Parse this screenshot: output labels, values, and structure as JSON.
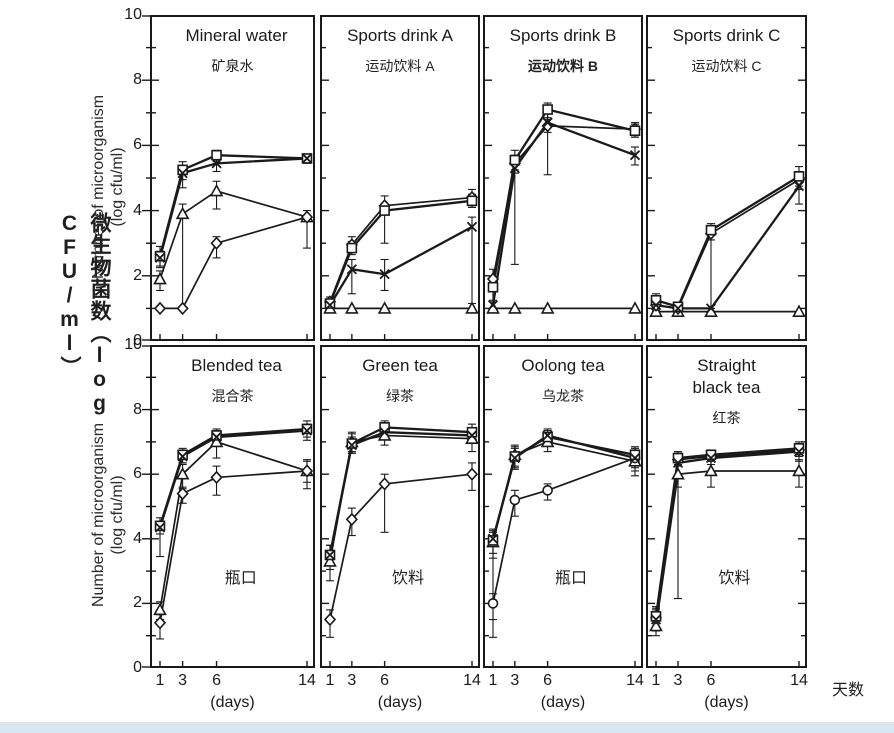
{
  "figure": {
    "ylabel_zh": "微生物菌数（log CFU/ml）",
    "ylabel_en_line1": "Number of microorganism",
    "ylabel_en_line2": "(log cfu/ml)",
    "xlabel_en": "(days)",
    "xlabel_zh": "天数",
    "y_ticks": [
      "10",
      "8",
      "6",
      "4",
      "2",
      "0"
    ],
    "x_tick_labels": [
      "1",
      "3",
      "6",
      "14"
    ],
    "ink_color": "#1a1a1a",
    "bottom_strip_color": "#dbe6f0"
  },
  "chart_data": [
    {
      "type": "line",
      "title_lines": [
        "Mineral water"
      ],
      "subtitle": "矿泉水",
      "subtitle_bold": false,
      "annotation": "",
      "x": [
        1,
        3,
        6,
        14
      ],
      "xlabel": "(days)",
      "ylim": [
        0,
        10
      ],
      "legend": "none",
      "series": [
        {
          "name": "triangle",
          "marker": "triangle",
          "values": [
            1.9,
            3.9,
            4.6,
            3.8
          ],
          "err": [
            [
              0.35,
              0.25
            ],
            [
              2.85,
              0.3
            ],
            [
              0.55,
              0.3
            ],
            [
              0.95,
              0.2
            ]
          ]
        },
        {
          "name": "diamond",
          "marker": "diamond",
          "values": [
            1.0,
            1.0,
            3.0,
            3.8
          ],
          "err": [
            [
              0,
              0
            ],
            [
              0,
              0
            ],
            [
              0.45,
              0.2
            ],
            [
              0,
              0
            ]
          ]
        },
        {
          "name": "square",
          "marker": "square",
          "values": [
            2.6,
            5.25,
            5.7,
            5.6
          ],
          "err": [
            [
              0.35,
              0.3
            ],
            [
              0.3,
              0.25
            ],
            [
              0.2,
              0.15
            ],
            [
              0.15,
              0.1
            ]
          ]
        },
        {
          "name": "cross",
          "marker": "cross",
          "values": [
            2.55,
            5.15,
            5.45,
            5.6
          ],
          "err": [
            [
              0.25,
              0.2
            ],
            [
              0.45,
              0.2
            ],
            [
              0.25,
              0.1
            ],
            [
              0.1,
              0.1
            ]
          ]
        }
      ]
    },
    {
      "type": "line",
      "title_lines": [
        "Sports drink A"
      ],
      "subtitle": "运动饮料 A",
      "subtitle_bold": false,
      "annotation": "",
      "x": [
        1,
        3,
        6,
        14
      ],
      "xlabel": "(days)",
      "ylim": [
        0,
        10
      ],
      "legend": "none",
      "series": [
        {
          "name": "triangle",
          "marker": "triangle",
          "values": [
            1.0,
            1.0,
            1.0,
            1.0
          ],
          "err": [
            [
              0,
              0
            ],
            [
              0,
              0
            ],
            [
              0,
              0
            ],
            [
              0,
              0
            ]
          ]
        },
        {
          "name": "diamond",
          "marker": "diamond",
          "values": [
            1.2,
            2.95,
            4.15,
            4.4
          ],
          "err": [
            [
              0.15,
              0.15
            ],
            [
              0.2,
              0.25
            ],
            [
              0.25,
              0.3
            ],
            [
              0.3,
              0.25
            ]
          ]
        },
        {
          "name": "square",
          "marker": "square",
          "values": [
            1.15,
            2.85,
            4.0,
            4.3
          ],
          "err": [
            [
              0.1,
              0.1
            ],
            [
              0.2,
              0.2
            ],
            [
              1.0,
              0.2
            ],
            [
              0.2,
              0.2
            ]
          ]
        },
        {
          "name": "cross",
          "marker": "cross",
          "values": [
            1.1,
            2.2,
            2.05,
            3.5
          ],
          "err": [
            [
              0.1,
              0.1
            ],
            [
              0.75,
              0.3
            ],
            [
              0.5,
              0.45
            ],
            [
              2.35,
              0.3
            ]
          ]
        }
      ]
    },
    {
      "type": "line",
      "title_lines": [
        "Sports drink B"
      ],
      "subtitle": "运动饮料 B",
      "subtitle_bold": true,
      "annotation": "",
      "x": [
        1,
        3,
        6,
        14
      ],
      "xlabel": "(days)",
      "ylim": [
        0,
        10
      ],
      "legend": "none",
      "series": [
        {
          "name": "triangle",
          "marker": "triangle",
          "values": [
            1.0,
            1.0,
            1.0,
            1.0
          ],
          "err": [
            [
              0,
              0
            ],
            [
              0,
              0
            ],
            [
              0,
              0
            ],
            [
              0,
              0
            ]
          ]
        },
        {
          "name": "diamond",
          "marker": "diamond",
          "values": [
            1.9,
            5.45,
            6.6,
            6.5
          ],
          "err": [
            [
              0.9,
              0.3
            ],
            [
              0.3,
              0.25
            ],
            [
              1.5,
              0.2
            ],
            [
              0.2,
              0.2
            ]
          ]
        },
        {
          "name": "square",
          "marker": "square",
          "values": [
            1.65,
            5.55,
            7.1,
            6.45
          ],
          "err": [
            [
              0.45,
              0.3
            ],
            [
              0.3,
              0.3
            ],
            [
              0.25,
              0.2
            ],
            [
              0.2,
              0.2
            ]
          ]
        },
        {
          "name": "cross",
          "marker": "cross",
          "values": [
            1.1,
            5.3,
            6.7,
            5.7
          ],
          "err": [
            [
              0.1,
              0.15
            ],
            [
              2.95,
              0.3
            ],
            [
              0.3,
              0.3
            ],
            [
              0.3,
              0.25
            ]
          ]
        }
      ]
    },
    {
      "type": "line",
      "title_lines": [
        "Sports drink C"
      ],
      "subtitle": "运动饮料 C",
      "subtitle_bold": false,
      "annotation": "",
      "x": [
        1,
        3,
        6,
        14
      ],
      "xlabel": "(days)",
      "ylim": [
        0,
        10
      ],
      "legend": "none",
      "series": [
        {
          "name": "triangle",
          "marker": "triangle",
          "values": [
            0.9,
            0.9,
            0.9,
            0.9
          ],
          "err": [
            [
              0,
              0
            ],
            [
              0,
              0
            ],
            [
              0,
              0
            ],
            [
              0,
              0
            ]
          ]
        },
        {
          "name": "diamond",
          "marker": "diamond",
          "values": [
            1.1,
            1.0,
            3.3,
            4.95
          ],
          "err": [
            [
              0.2,
              0.2
            ],
            [
              0.1,
              0.1
            ],
            [
              0.2,
              0.2
            ],
            [
              0.3,
              0.25
            ]
          ]
        },
        {
          "name": "square",
          "marker": "square",
          "values": [
            1.25,
            1.05,
            3.4,
            5.05
          ],
          "err": [
            [
              0.25,
              0.2
            ],
            [
              0.1,
              0.1
            ],
            [
              2.4,
              0.2
            ],
            [
              0.3,
              0.3
            ]
          ]
        },
        {
          "name": "cross",
          "marker": "cross",
          "values": [
            1.1,
            1.0,
            1.0,
            4.75
          ],
          "err": [
            [
              0.15,
              0.15
            ],
            [
              0,
              0
            ],
            [
              0,
              0
            ],
            [
              0.55,
              0.3
            ]
          ]
        }
      ]
    },
    {
      "type": "line",
      "title_lines": [
        "Blended tea"
      ],
      "subtitle": "混合茶",
      "subtitle_bold": false,
      "annotation": "瓶口",
      "x": [
        1,
        3,
        6,
        14
      ],
      "xlabel": "(days)",
      "ylim": [
        0,
        10
      ],
      "legend": "none",
      "series": [
        {
          "name": "triangle",
          "marker": "triangle",
          "values": [
            1.8,
            6.0,
            7.0,
            6.1
          ],
          "err": [
            [
              0.3,
              0.25
            ],
            [
              0.45,
              0.3
            ],
            [
              0.5,
              0.35
            ],
            [
              0.55,
              0.35
            ]
          ]
        },
        {
          "name": "diamond",
          "marker": "diamond",
          "values": [
            1.4,
            5.4,
            5.9,
            6.1
          ],
          "err": [
            [
              0.5,
              0.25
            ],
            [
              0.3,
              0.2
            ],
            [
              0.55,
              0.35
            ],
            [
              0.35,
              0.3
            ]
          ]
        },
        {
          "name": "square",
          "marker": "square",
          "values": [
            4.4,
            6.6,
            7.2,
            7.4
          ],
          "err": [
            [
              0.95,
              0.25
            ],
            [
              0.25,
              0.2
            ],
            [
              0.2,
              0.2
            ],
            [
              0.35,
              0.25
            ]
          ]
        },
        {
          "name": "cross",
          "marker": "cross",
          "values": [
            4.35,
            6.55,
            7.15,
            7.35
          ],
          "err": [
            [
              0.2,
              0.2
            ],
            [
              0.2,
              0.2
            ],
            [
              0.2,
              0.2
            ],
            [
              0.2,
              0.2
            ]
          ]
        }
      ]
    },
    {
      "type": "line",
      "title_lines": [
        "Green tea"
      ],
      "subtitle": "绿茶",
      "subtitle_bold": false,
      "annotation": "饮料",
      "x": [
        1,
        3,
        6,
        14
      ],
      "xlabel": "(days)",
      "ylim": [
        0,
        10
      ],
      "legend": "none",
      "series": [
        {
          "name": "triangle",
          "marker": "triangle",
          "values": [
            3.3,
            7.0,
            7.2,
            7.1
          ],
          "err": [
            [
              0.6,
              0.25
            ],
            [
              0.3,
              0.3
            ],
            [
              0.3,
              0.2
            ],
            [
              0.4,
              0.3
            ]
          ]
        },
        {
          "name": "diamond",
          "marker": "diamond",
          "values": [
            1.5,
            4.6,
            5.7,
            6.0
          ],
          "err": [
            [
              0.55,
              0.3
            ],
            [
              0.5,
              0.35
            ],
            [
              1.5,
              0.3
            ],
            [
              0.5,
              0.35
            ]
          ]
        },
        {
          "name": "square",
          "marker": "square",
          "values": [
            3.5,
            6.95,
            7.45,
            7.3
          ],
          "err": [
            [
              0.45,
              0.3
            ],
            [
              0.3,
              0.3
            ],
            [
              0.25,
              0.2
            ],
            [
              0.3,
              0.25
            ]
          ]
        },
        {
          "name": "cross",
          "marker": "cross",
          "values": [
            3.5,
            6.9,
            7.3,
            7.2
          ],
          "err": [
            [
              0.3,
              0.3
            ],
            [
              0.25,
              0.25
            ],
            [
              0.2,
              0.2
            ],
            [
              0.25,
              0.2
            ]
          ]
        }
      ]
    },
    {
      "type": "line",
      "title_lines": [
        "Oolong tea"
      ],
      "subtitle": "乌龙茶",
      "subtitle_bold": false,
      "annotation": "瓶口",
      "x": [
        1,
        3,
        6,
        14
      ],
      "xlabel": "(days)",
      "ylim": [
        0,
        10
      ],
      "legend": "none",
      "series": [
        {
          "name": "triangle",
          "marker": "triangle",
          "values": [
            3.9,
            6.6,
            7.0,
            6.4
          ],
          "err": [
            [
              0.5,
              0.3
            ],
            [
              0.4,
              0.3
            ],
            [
              0.3,
              0.2
            ],
            [
              0.45,
              0.3
            ]
          ]
        },
        {
          "name": "circle",
          "marker": "circle",
          "values": [
            2.0,
            5.2,
            5.5,
            6.5
          ],
          "err": [
            [
              1.05,
              0.3
            ],
            [
              0.5,
              0.3
            ],
            [
              0.3,
              0.2
            ],
            [
              0.3,
              0.25
            ]
          ]
        },
        {
          "name": "square",
          "marker": "square",
          "values": [
            3.95,
            6.55,
            7.15,
            6.6
          ],
          "err": [
            [
              0.4,
              0.3
            ],
            [
              0.3,
              0.3
            ],
            [
              0.2,
              0.2
            ],
            [
              0.3,
              0.25
            ]
          ]
        },
        {
          "name": "cross",
          "marker": "cross",
          "values": [
            4.0,
            6.5,
            7.2,
            6.5
          ],
          "err": [
            [
              2.5,
              0.3
            ],
            [
              0.35,
              0.3
            ],
            [
              0.2,
              0.2
            ],
            [
              0.4,
              0.3
            ]
          ]
        }
      ]
    },
    {
      "type": "line",
      "title_lines": [
        "Straight",
        "black tea"
      ],
      "subtitle": "红茶",
      "subtitle_bold": false,
      "annotation": "饮料",
      "x": [
        1,
        3,
        6,
        14
      ],
      "xlabel": "(days)",
      "ylim": [
        0,
        10
      ],
      "legend": "none",
      "series": [
        {
          "name": "triangle",
          "marker": "triangle",
          "values": [
            1.3,
            6.0,
            6.1,
            6.1
          ],
          "err": [
            [
              0.3,
              0.3
            ],
            [
              0.4,
              0.3
            ],
            [
              0.5,
              0.3
            ],
            [
              0.5,
              0.35
            ]
          ]
        },
        {
          "name": "diamond",
          "marker": "diamond",
          "values": [
            1.55,
            6.45,
            6.55,
            6.75
          ],
          "err": [
            [
              0.4,
              0.3
            ],
            [
              0.2,
              0.2
            ],
            [
              0.15,
              0.15
            ],
            [
              0.2,
              0.2
            ]
          ]
        },
        {
          "name": "square",
          "marker": "square",
          "values": [
            1.6,
            6.5,
            6.6,
            6.8
          ],
          "err": [
            [
              0.45,
              0.3
            ],
            [
              0.2,
              0.2
            ],
            [
              0.15,
              0.15
            ],
            [
              0.2,
              0.2
            ]
          ]
        },
        {
          "name": "cross",
          "marker": "cross",
          "values": [
            1.5,
            6.35,
            6.5,
            6.7
          ],
          "err": [
            [
              0.35,
              0.3
            ],
            [
              4.2,
              0.2
            ],
            [
              0.2,
              0.2
            ],
            [
              0.3,
              0.2
            ]
          ]
        }
      ]
    }
  ]
}
